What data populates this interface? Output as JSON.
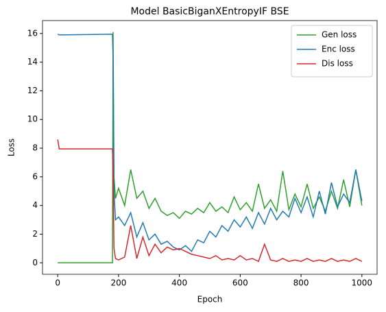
{
  "chart_data": {
    "type": "line",
    "title": "Model BasicBiganXEntropyIF BSE",
    "x_label": "Epoch",
    "y_label": "Loss",
    "x": [
      0,
      5,
      178,
      180,
      182,
      185,
      190,
      200,
      220,
      240,
      260,
      280,
      300,
      320,
      340,
      360,
      380,
      400,
      420,
      440,
      460,
      480,
      500,
      520,
      540,
      560,
      580,
      600,
      620,
      640,
      660,
      680,
      700,
      720,
      740,
      760,
      780,
      800,
      820,
      840,
      860,
      880,
      900,
      920,
      940,
      960,
      980,
      1000
    ],
    "series": [
      {
        "name": "Gen loss",
        "color": "#2ca02c",
        "values": [
          0,
          0,
          0,
          0,
          16.1,
          6,
          4.5,
          5.2,
          4,
          6.5,
          4.5,
          5,
          3.8,
          4.5,
          3.6,
          3.3,
          3.5,
          3.1,
          3.6,
          3.4,
          3.8,
          3.5,
          4.2,
          3.6,
          3.9,
          3.5,
          4.6,
          3.7,
          4.2,
          3.6,
          5.5,
          3.8,
          4.4,
          3.6,
          6.4,
          3.7,
          4.8,
          3.9,
          5.5,
          3.8,
          4.6,
          3.6,
          5,
          3.8,
          5.8,
          3.9,
          6.5,
          4
        ]
      },
      {
        "name": "Enc loss",
        "color": "#1f77b4",
        "values": [
          15.95,
          15.9,
          15.95,
          15.9,
          14.3,
          5,
          3,
          3.2,
          2.6,
          3.5,
          1.8,
          2.8,
          1.6,
          2,
          1.3,
          1.5,
          1.1,
          0.9,
          1.2,
          0.8,
          1.6,
          1.4,
          2.2,
          1.8,
          2.6,
          2.2,
          3,
          2.5,
          3.2,
          2.4,
          3.5,
          2.7,
          3.8,
          3,
          3.6,
          3.2,
          4.5,
          3.5,
          4.6,
          3.2,
          5,
          3.4,
          5.6,
          3.9,
          4.8,
          4.2,
          6.5,
          4.3
        ]
      },
      {
        "name": "Dis loss",
        "color": "#d62728",
        "values": [
          8.6,
          7.95,
          7.95,
          7.95,
          6.5,
          1,
          0.3,
          0.2,
          0.4,
          2.6,
          0.3,
          1.8,
          0.5,
          1.3,
          0.7,
          1.1,
          0.9,
          1,
          0.8,
          0.6,
          0.5,
          0.4,
          0.3,
          0.5,
          0.2,
          0.3,
          0.2,
          0.5,
          0.2,
          0.3,
          0.1,
          1.3,
          0.2,
          0.1,
          0.3,
          0.1,
          0.2,
          0.1,
          0.3,
          0.1,
          0.2,
          0.1,
          0.3,
          0.1,
          0.2,
          0.1,
          0.3,
          0.1
        ]
      }
    ],
    "xlim": [
      -50,
      1050
    ],
    "ylim": [
      -0.8,
      16.9
    ],
    "xticks": [
      0,
      200,
      400,
      600,
      800,
      1000
    ],
    "yticks": [
      0,
      2,
      4,
      6,
      8,
      10,
      12,
      14,
      16
    ],
    "legend": "upper right"
  }
}
